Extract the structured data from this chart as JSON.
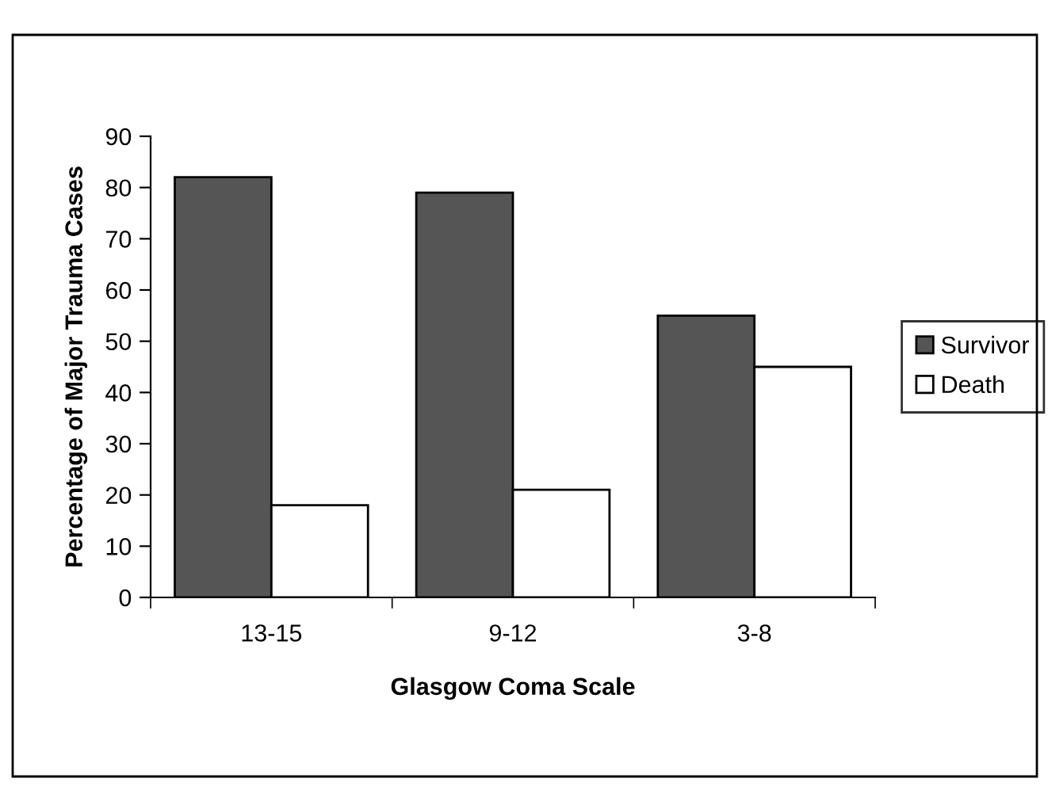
{
  "chart_data": {
    "type": "bar",
    "xlabel": "Glasgow Coma Scale",
    "ylabel": "Percentage of Major Trauma Cases",
    "categories": [
      "13-15",
      "9-12",
      "3-8"
    ],
    "series": [
      {
        "name": "Survivor",
        "color": "#555555",
        "values": [
          82,
          79,
          55
        ]
      },
      {
        "name": "Death",
        "color": "#ffffff",
        "values": [
          18,
          21,
          45
        ]
      }
    ],
    "ylim": [
      0,
      90
    ],
    "yticks": [
      0,
      10,
      20,
      30,
      40,
      50,
      60,
      70,
      80,
      90
    ],
    "grid": false,
    "legend": "right"
  }
}
